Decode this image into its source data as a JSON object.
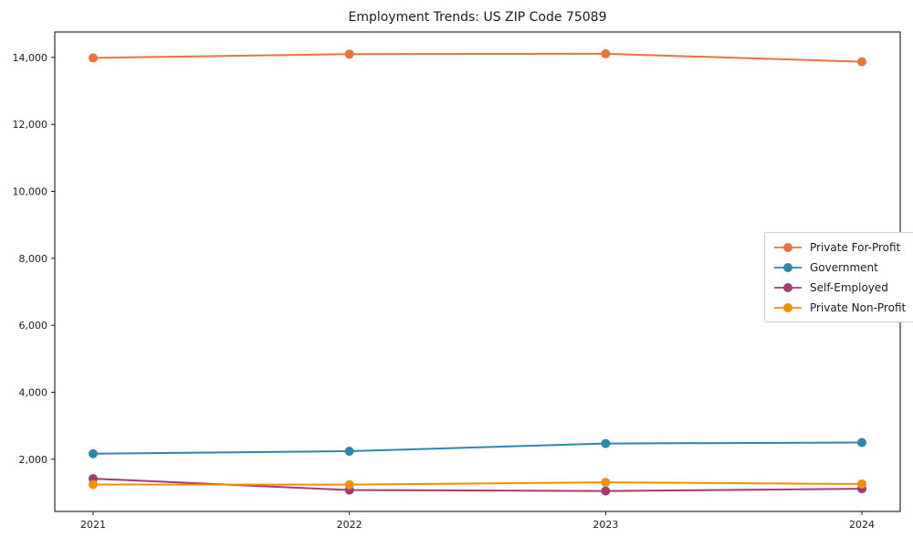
{
  "chart_data": {
    "type": "line",
    "title": "Employment Trends: US ZIP Code 75089",
    "xlabel": "",
    "ylabel": "",
    "categories": [
      "2021",
      "2022",
      "2023",
      "2024"
    ],
    "series": [
      {
        "name": "Private For-Profit",
        "color": "#E8743B",
        "values": [
          13985,
          14100,
          14110,
          13870
        ]
      },
      {
        "name": "Government",
        "color": "#2E86AB",
        "values": [
          2165,
          2240,
          2470,
          2500
        ]
      },
      {
        "name": "Self-Employed",
        "color": "#A23B72",
        "values": [
          1420,
          1080,
          1050,
          1120
        ]
      },
      {
        "name": "Private Non-Profit",
        "color": "#F18F01",
        "values": [
          1245,
          1240,
          1310,
          1260
        ]
      }
    ],
    "ylim": [
      440,
      14760
    ],
    "yticks": [
      2000,
      4000,
      6000,
      8000,
      10000,
      12000,
      14000
    ],
    "ytick_labels": [
      "2,000",
      "4,000",
      "6,000",
      "8,000",
      "10,000",
      "12,000",
      "14,000"
    ],
    "grid": false,
    "legend_position": "center-right",
    "marker": "circle",
    "frame_color": "#000000",
    "text_color": "#1a1a1a",
    "legend_border_color": "#cccccc"
  }
}
